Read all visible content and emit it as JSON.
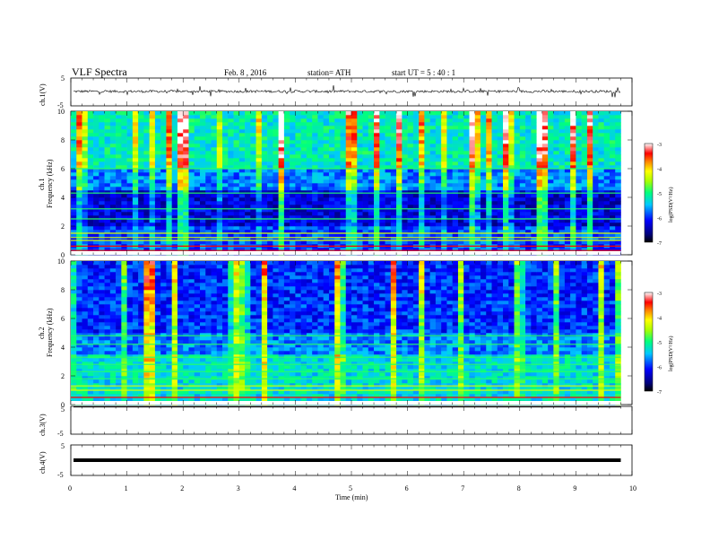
{
  "header": {
    "title": "VLF  Spectra",
    "date": "Feb. 8  , 2016",
    "station": "station= ATH",
    "start": "start  UT  =   5 : 40 : 1"
  },
  "chart_data": [
    {
      "type": "line",
      "panel": "ch1-waveform",
      "ylabel": "ch.1(V)",
      "ylim": [
        -5,
        5
      ],
      "yticks": [
        "5",
        "-5"
      ],
      "xlim": [
        0,
        10
      ],
      "signal_level": 0.2,
      "color": "#000000"
    },
    {
      "type": "heatmap",
      "panel": "ch1-spectrogram",
      "ylabel_top": "ch.1",
      "ylabel": "Frequency  (kHz)",
      "ylim": [
        0,
        10
      ],
      "yticks": [
        "0",
        "2",
        "4",
        "6",
        "8",
        "10"
      ],
      "xlim": [
        0,
        9.8
      ],
      "colorbar": {
        "label": "log(PSD(V²/Hz)",
        "range": [
          -7,
          -3
        ],
        "ticks": [
          "-3",
          "-4",
          "-5",
          "-6",
          "-7"
        ]
      },
      "notable_bands_khz": [
        0.3,
        0.6,
        1.0,
        1.2,
        1.5,
        2.5,
        3.2,
        4.3,
        6.0
      ]
    },
    {
      "type": "heatmap",
      "panel": "ch2-spectrogram",
      "ylabel_top": "ch.2",
      "ylabel": "Frequency  (kHz)",
      "ylim": [
        0,
        10
      ],
      "yticks": [
        "0",
        "2",
        "4",
        "6",
        "8",
        "10"
      ],
      "xlim": [
        0,
        9.8
      ],
      "colorbar": {
        "label": "log(PSD(V²/Hz)",
        "range": [
          -7,
          -3
        ],
        "ticks": [
          "-3",
          "-4",
          "-5",
          "-6",
          "-7"
        ]
      },
      "notable_bands_khz": [
        0.2,
        0.5,
        1.0,
        1.3,
        1.8,
        2.3,
        2.8,
        3.3,
        4.2,
        4.8
      ]
    },
    {
      "type": "line",
      "panel": "ch3-waveform",
      "ylabel": "ch.3(V)",
      "ylim": [
        -5,
        5
      ],
      "yticks": [
        "5",
        "-5"
      ],
      "xlim": [
        0,
        10
      ],
      "signal_level": 4.8,
      "color": "#000000"
    },
    {
      "type": "line",
      "panel": "ch4-waveform",
      "ylabel": "ch.4(V)",
      "ylim": [
        -5,
        5
      ],
      "yticks": [
        "5",
        "-5"
      ],
      "xlim": [
        0,
        10
      ],
      "signal_level": 0.0,
      "color": "#000000"
    }
  ],
  "xaxis": {
    "label": "Time  (min)",
    "ticks": [
      "0",
      "1",
      "2",
      "3",
      "4",
      "5",
      "6",
      "7",
      "8",
      "9",
      "10"
    ]
  }
}
